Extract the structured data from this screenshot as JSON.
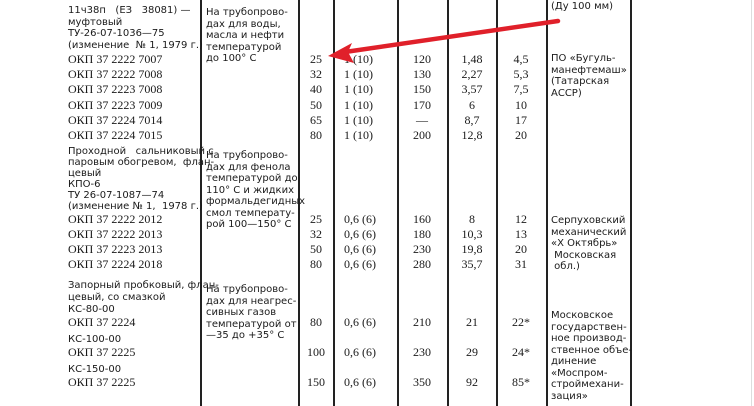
{
  "top_cut_text": "(Ду 100 мм)",
  "arrow_color": "#e0202a",
  "sections": [
    {
      "name_lines": [
        "11ч38п   (ЕЗ   38081) —",
        "муфтовый",
        "ТУ-26-07-1036—75",
        "(изменение  № 1, 1979 г.)"
      ],
      "purpose_lines": [
        "На трубопрово-",
        "дах для воды,",
        "масла и нефти",
        "температурой",
        "до 100° С"
      ],
      "manufacturer_lines": [
        "ПО «Бугуль-",
        "манефтемаш»",
        "(Татарская",
        "АССР)"
      ],
      "rows": [
        {
          "code": "ОКП 37 2222 7007",
          "dn": "25",
          "pressure": "1 (10)",
          "c1": "120",
          "c2": "1,48",
          "c3": "4,5"
        },
        {
          "code": "ОКП 37 2222 7008",
          "dn": "32",
          "pressure": "1 (10)",
          "c1": "130",
          "c2": "2,27",
          "c3": "5,3"
        },
        {
          "code": "ОКП 37 2223 7008",
          "dn": "40",
          "pressure": "1 (10)",
          "c1": "150",
          "c2": "3,57",
          "c3": "7,5"
        },
        {
          "code": "ОКП 37 2223 7009",
          "dn": "50",
          "pressure": "1 (10)",
          "c1": "170",
          "c2": "6",
          "c3": "10"
        },
        {
          "code": "ОКП 37 2224 7014",
          "dn": "65",
          "pressure": "1 (10)",
          "c1": "—",
          "c2": "8,7",
          "c3": "17"
        },
        {
          "code": "ОКП 37 2224 7015",
          "dn": "80",
          "pressure": "1 (10)",
          "c1": "200",
          "c2": "12,8",
          "c3": "20"
        }
      ]
    },
    {
      "name_lines": [
        "Проходной   сальниковый с",
        "паровым обогревом,  флан-",
        "цевый",
        "КПО-6",
        "ТУ 26-07-1087—74",
        "(изменение № 1,  1978 г.)"
      ],
      "purpose_lines": [
        "На трубопрово-",
        "дах для фенола",
        "температурой до",
        "110° С и жидких",
        "формальдегидных",
        "смол температу-",
        "рой 100—150° С"
      ],
      "manufacturer_lines": [
        "Серпуховский",
        "механический",
        "«Х Октябрь»",
        " Московская",
        " обл.)"
      ],
      "rows": [
        {
          "code": "ОКП 37 2222 2012",
          "dn": "25",
          "pressure": "0,6 (6)",
          "c1": "160",
          "c2": "8",
          "c3": "12"
        },
        {
          "code": "ОКП 37 2222 2013",
          "dn": "32",
          "pressure": "0,6 (6)",
          "c1": "180",
          "c2": "10,3",
          "c3": "13"
        },
        {
          "code": "ОКП 37 2223 2013",
          "dn": "50",
          "pressure": "0,6 (6)",
          "c1": "230",
          "c2": "19,8",
          "c3": "20"
        },
        {
          "code": "ОКП 37 2224 2018",
          "dn": "80",
          "pressure": "0,6 (6)",
          "c1": "280",
          "c2": "35,7",
          "c3": "31"
        }
      ]
    },
    {
      "name_lines": [
        "Запорный пробковый, флан-",
        "цевый, со смазкой"
      ],
      "purpose_lines": [
        "На трубопрово-",
        "дах для неагрес-",
        "сивных газов",
        "температурой от",
        "—35 до +35° С"
      ],
      "manufacturer_lines": [
        "Московское",
        "государствен-",
        "ное производ-",
        "ственное объе-",
        "динение",
        "«Моспром-",
        "строймехани-",
        "зация»"
      ],
      "rows": [
        {
          "model": "КС-80-00",
          "code": "ОКП 37 2224",
          "dn": "80",
          "pressure": "0,6 (6)",
          "c1": "210",
          "c2": "21",
          "c3": "22*"
        },
        {
          "model": "КС-100-00",
          "code": "ОКП 37 2225",
          "dn": "100",
          "pressure": "0,6 (6)",
          "c1": "230",
          "c2": "29",
          "c3": "24*"
        },
        {
          "model": "КС-150-00",
          "code": "ОКП 37 2225",
          "dn": "150",
          "pressure": "0,6 (6)",
          "c1": "350",
          "c2": "92",
          "c3": "85*"
        }
      ]
    }
  ]
}
